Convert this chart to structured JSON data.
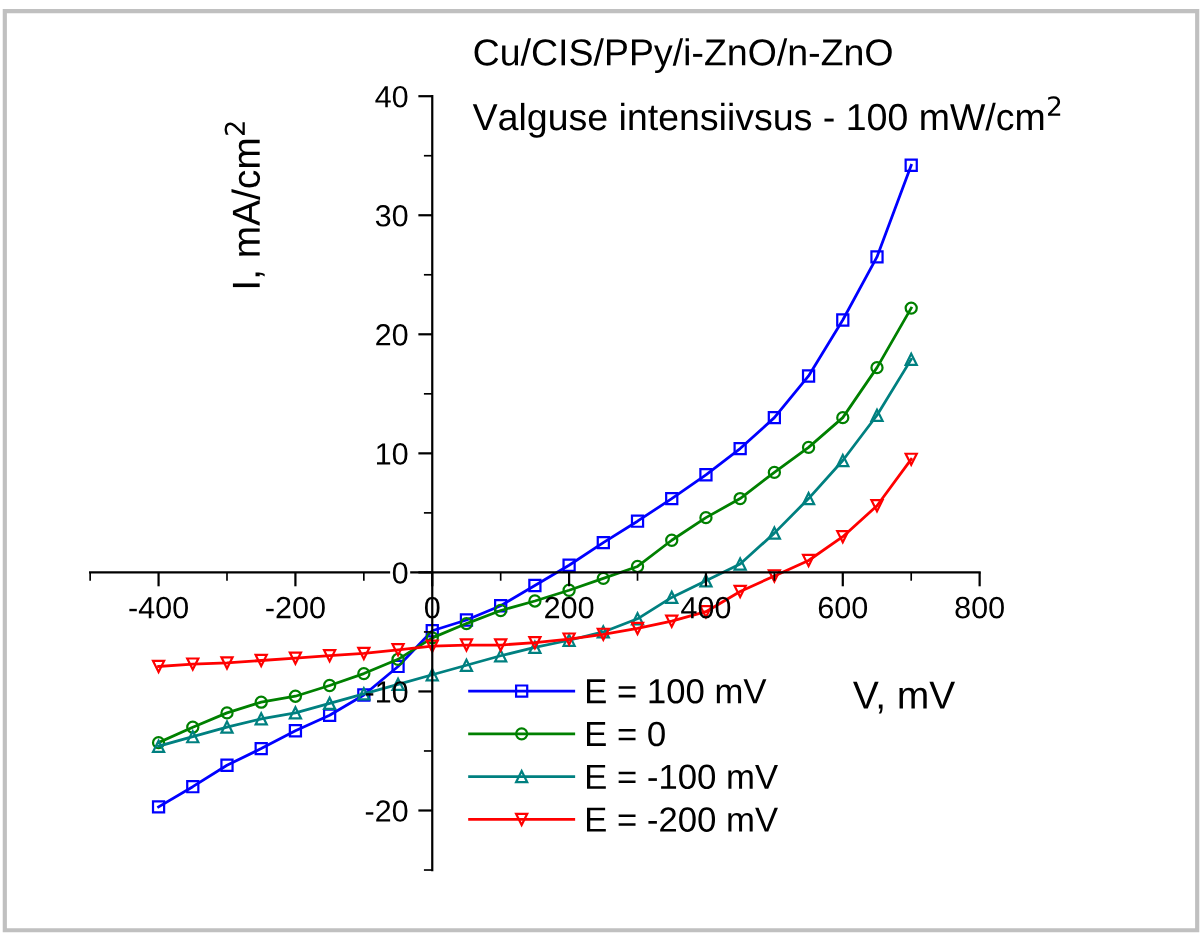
{
  "chart_data": {
    "type": "line",
    "xlabel": "V, mV",
    "ylabel": "I, mA/cm$^{2}$",
    "annotations": [
      "Cu/CIS/PPy/i-ZnO/n-ZnO",
      "Valguse intensiivsus - 100 mW/cm$^{2}$"
    ],
    "x": [
      -400,
      -350,
      -300,
      -250,
      -200,
      -150,
      -100,
      -50,
      0,
      50,
      100,
      150,
      200,
      250,
      300,
      350,
      400,
      450,
      500,
      550,
      600,
      650,
      700
    ],
    "series": [
      {
        "name": "E = 100 mV",
        "color": "#0000ff",
        "marker": "square",
        "values": [
          -19.7,
          -18.0,
          -16.2,
          -14.8,
          -13.3,
          -12.0,
          -10.3,
          -7.9,
          -4.9,
          -4.0,
          -2.8,
          -1.1,
          0.6,
          2.5,
          4.3,
          6.2,
          8.2,
          10.4,
          13.0,
          16.5,
          21.2,
          26.5,
          34.2
        ]
      },
      {
        "name": "E = 0",
        "color": "#008000",
        "marker": "circle",
        "values": [
          -14.3,
          -13.0,
          -11.8,
          -10.9,
          -10.4,
          -9.5,
          -8.5,
          -7.3,
          -5.5,
          -4.3,
          -3.2,
          -2.4,
          -1.5,
          -0.5,
          0.5,
          2.7,
          4.6,
          6.2,
          8.4,
          10.5,
          13.0,
          17.2,
          22.2
        ]
      },
      {
        "name": "E = -100 mV",
        "color": "#008080",
        "marker": "triangle",
        "values": [
          -14.6,
          -13.8,
          -13.0,
          -12.3,
          -11.8,
          -11.0,
          -10.2,
          -9.4,
          -8.6,
          -7.8,
          -7.0,
          -6.3,
          -5.7,
          -5.0,
          -3.9,
          -2.1,
          -0.7,
          0.7,
          3.3,
          6.2,
          9.4,
          13.2,
          17.9
        ]
      },
      {
        "name": "E = -200 mV",
        "color": "#ff0000",
        "marker": "triangle_down",
        "values": [
          -7.9,
          -7.7,
          -7.6,
          -7.4,
          -7.2,
          -7.0,
          -6.8,
          -6.5,
          -6.2,
          -6.1,
          -6.1,
          -5.9,
          -5.6,
          -5.2,
          -4.7,
          -4.1,
          -3.3,
          -1.6,
          -0.3,
          1.0,
          3.0,
          5.6,
          9.5
        ]
      }
    ],
    "xlim": [
      -500,
      800
    ],
    "xticks": [
      -400,
      -200,
      0,
      200,
      400,
      600,
      800
    ],
    "ylim": [
      -25,
      40
    ],
    "yticks": [
      -20,
      -10,
      0,
      10,
      20,
      30,
      40
    ],
    "grid": false,
    "legend": "bottom",
    "line_style": "solid"
  }
}
